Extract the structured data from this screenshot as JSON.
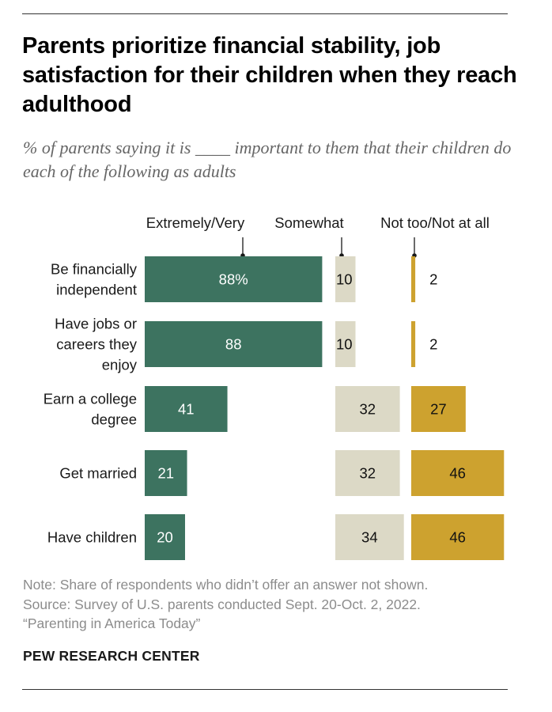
{
  "title": "Parents prioritize financial stability, job satisfaction for their children when they reach adulthood",
  "subtitle": "% of parents saying it is ____ important to them that their children do each of the following as adults",
  "chart_data": {
    "type": "bar",
    "stacked": false,
    "orientation": "horizontal",
    "categories": [
      [
        "Be financially",
        "independent"
      ],
      [
        "Have jobs or",
        "careers they",
        "enjoy"
      ],
      [
        "Earn a college",
        "degree"
      ],
      [
        "Get married"
      ],
      [
        "Have children"
      ]
    ],
    "series": [
      {
        "name": "Extremely/Very",
        "values": [
          88,
          88,
          41,
          21,
          20
        ],
        "labels": [
          "88%",
          "88",
          "41",
          "21",
          "20"
        ],
        "color": "#3d7360"
      },
      {
        "name": "Somewhat",
        "values": [
          10,
          10,
          32,
          32,
          34
        ],
        "labels": [
          "10",
          "10",
          "32",
          "32",
          "34"
        ],
        "color": "#dcd9c6"
      },
      {
        "name": "Not too/Not at all",
        "values": [
          2,
          2,
          27,
          46,
          46
        ],
        "labels": [
          "2",
          "2",
          "27",
          "46",
          "46"
        ],
        "color": "#cda22f"
      }
    ],
    "xlim": [
      0,
      100
    ],
    "grid": false
  },
  "note": [
    "Note: Share of respondents who didn’t offer an answer not shown.",
    "Source: Survey of U.S. parents conducted Sept. 20-Oct. 2, 2022.",
    "“Parenting in America Today”"
  ],
  "brand": "PEW RESEARCH CENTER",
  "colors": {
    "label_dark": "#111111",
    "label_light": "#ffffff"
  }
}
